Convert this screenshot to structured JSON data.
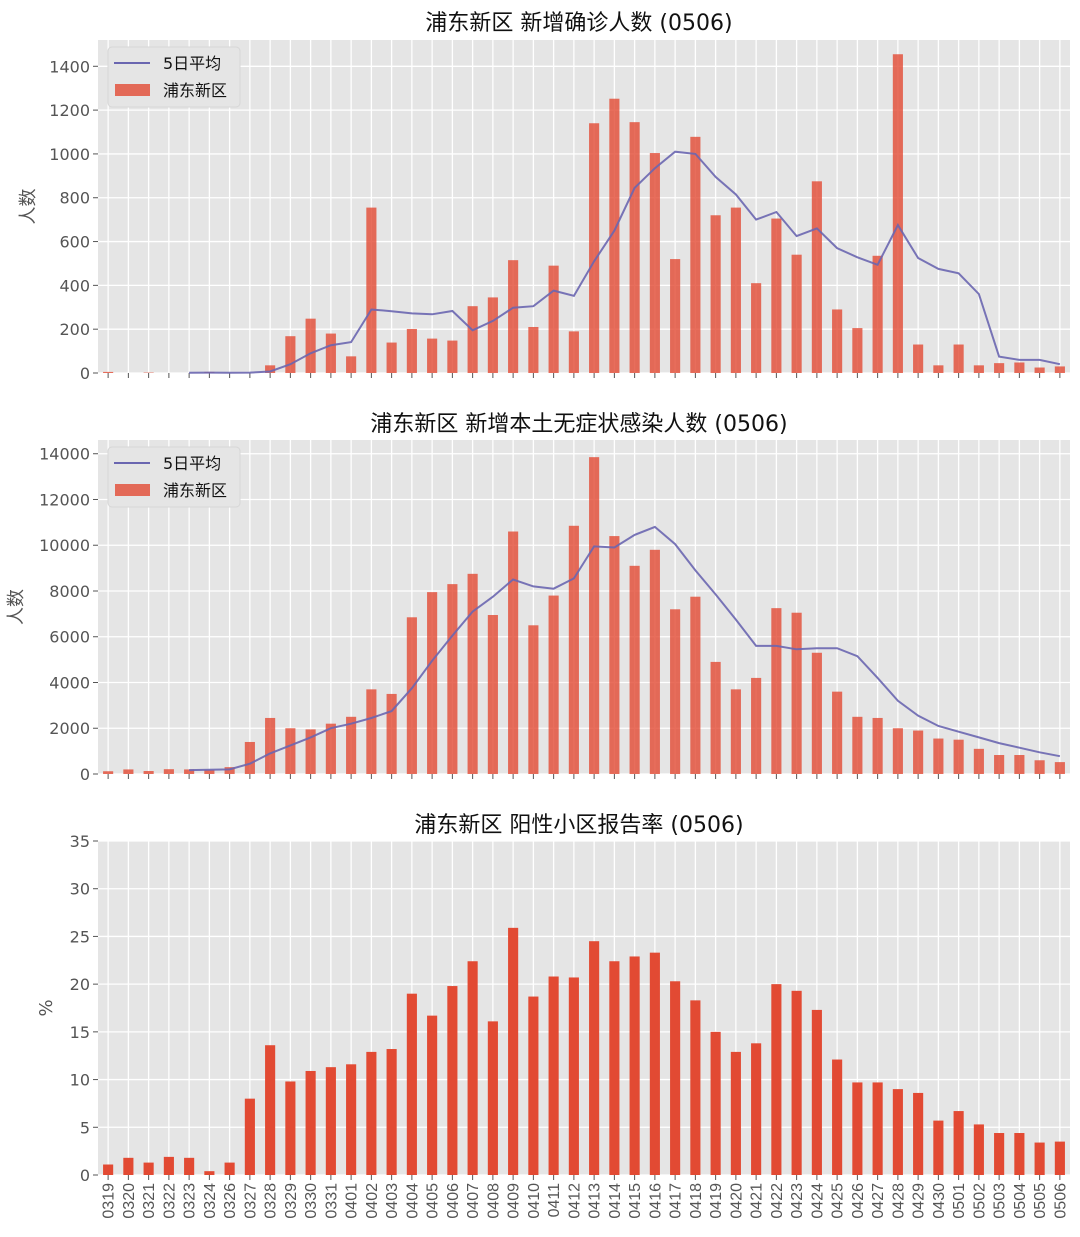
{
  "colors": {
    "bar": "#E24A33",
    "line": "#6a66b0",
    "axes_bg": "#E5E5E5",
    "grid": "#FFFFFF"
  },
  "chart_data": [
    {
      "type": "bar",
      "title": "浦东新区 新增确诊人数 (0506)",
      "ylabel": "人数",
      "ylim": [
        0,
        1520
      ],
      "yticks": [
        0,
        200,
        400,
        600,
        800,
        1000,
        1200,
        1400
      ],
      "grid": true,
      "legend": "top-left",
      "categories": [
        "0319",
        "0320",
        "0321",
        "0322",
        "0323",
        "0324",
        "0326",
        "0327",
        "0328",
        "0329",
        "0330",
        "0331",
        "0401",
        "0402",
        "0403",
        "0404",
        "0405",
        "0406",
        "0407",
        "0408",
        "0409",
        "0410",
        "0411",
        "0412",
        "0413",
        "0414",
        "0415",
        "0416",
        "0417",
        "0418",
        "0419",
        "0420",
        "0421",
        "0422",
        "0423",
        "0424",
        "0425",
        "0426",
        "0427",
        "0428",
        "0429",
        "0430",
        "0501",
        "0502",
        "0503",
        "0504",
        "0505",
        "0506"
      ],
      "series": [
        {
          "name": "浦东新区",
          "kind": "bar",
          "values": [
            5,
            0,
            2,
            0,
            0,
            5,
            0,
            0,
            35,
            168,
            248,
            180,
            76,
            755,
            139,
            201,
            157,
            148,
            305,
            345,
            515,
            210,
            490,
            190,
            1140,
            1252,
            1145,
            1004,
            520,
            1078,
            720,
            755,
            410,
            705,
            540,
            875,
            290,
            205,
            535,
            1455,
            130,
            35,
            130,
            35,
            45,
            48,
            25,
            30
          ]
        },
        {
          "name": "5日平均",
          "kind": "line",
          "values": [
            null,
            null,
            null,
            null,
            1,
            2,
            1,
            2,
            7,
            40,
            90,
            127,
            141,
            290,
            282,
            272,
            268,
            283,
            195,
            238,
            298,
            305,
            376,
            352,
            510,
            650,
            845,
            935,
            1010,
            1000,
            895,
            815,
            700,
            735,
            625,
            660,
            570,
            528,
            494,
            675,
            525,
            475,
            455,
            360,
            75,
            60,
            60,
            40
          ]
        }
      ]
    },
    {
      "type": "bar",
      "title": "浦东新区 新增本土无症状感染人数 (0506)",
      "ylabel": "人数",
      "ylim": [
        0,
        14600
      ],
      "yticks": [
        0,
        2000,
        4000,
        6000,
        8000,
        10000,
        12000,
        14000
      ],
      "grid": true,
      "legend": "top-left",
      "series": [
        {
          "name": "浦东新区",
          "kind": "bar",
          "values": [
            120,
            200,
            130,
            210,
            200,
            170,
            300,
            1400,
            2450,
            2000,
            1950,
            2200,
            2500,
            3700,
            3500,
            6850,
            7950,
            8300,
            8750,
            6950,
            10600,
            6500,
            7800,
            10850,
            13850,
            10400,
            9100,
            9800,
            7200,
            7750,
            4900,
            3700,
            4200,
            7250,
            7050,
            5300,
            3600,
            2500,
            2450,
            2000,
            1900,
            1550,
            1500,
            1100,
            830,
            830,
            600,
            520
          ]
        },
        {
          "name": "5日平均",
          "kind": "line",
          "values": [
            null,
            null,
            null,
            null,
            170,
            190,
            200,
            450,
            900,
            1250,
            1600,
            2000,
            2200,
            2450,
            2750,
            3750,
            4950,
            6050,
            7100,
            7750,
            8500,
            8200,
            8100,
            8550,
            9950,
            9900,
            10450,
            10800,
            10050,
            8900,
            7850,
            6750,
            5600,
            5600,
            5450,
            5500,
            5500,
            5150,
            4200,
            3200,
            2550,
            2100,
            1850,
            1600,
            1350,
            1150,
            950,
            780
          ]
        }
      ]
    },
    {
      "type": "bar",
      "title": "浦东新区 阳性小区报告率 (0506)",
      "ylabel": "%",
      "ylim": [
        0,
        35
      ],
      "yticks": [
        0,
        5,
        10,
        15,
        20,
        25,
        30,
        35
      ],
      "grid": true,
      "series": [
        {
          "kind": "bar",
          "values": [
            1.1,
            1.8,
            1.3,
            1.9,
            1.8,
            0.4,
            1.3,
            8.0,
            13.6,
            9.8,
            10.9,
            11.3,
            11.6,
            12.9,
            13.2,
            19.0,
            16.7,
            19.8,
            22.4,
            16.1,
            25.9,
            18.7,
            20.8,
            20.7,
            24.5,
            22.4,
            22.9,
            23.3,
            20.3,
            18.3,
            15.0,
            12.9,
            13.8,
            20.0,
            19.3,
            17.3,
            12.1,
            9.7,
            9.7,
            9.0,
            8.6,
            5.7,
            6.7,
            5.3,
            4.4,
            4.4,
            3.4,
            3.5
          ]
        }
      ]
    }
  ]
}
